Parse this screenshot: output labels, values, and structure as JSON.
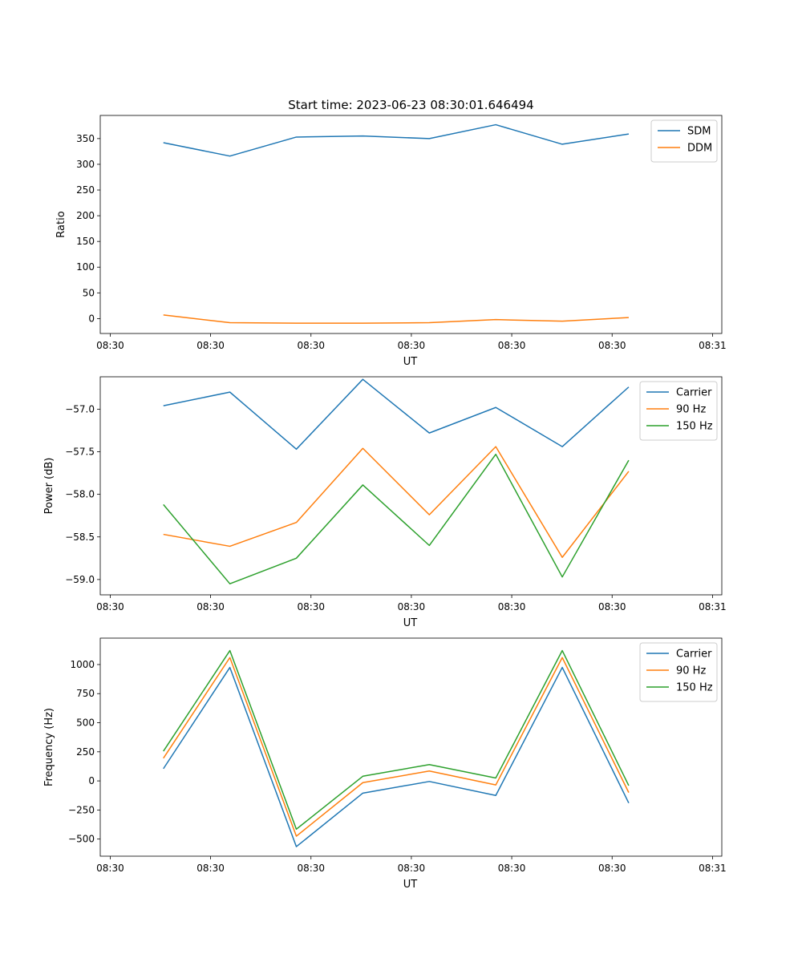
{
  "figure": {
    "title": "Start time: 2023-06-23 08:30:01.646494"
  },
  "chart_data": [
    {
      "type": "line",
      "title": "Start time: 2023-06-23 08:30:01.646494",
      "xlabel": "UT",
      "ylabel": "Ratio",
      "x": [
        1.0,
        2.0,
        3.0,
        4.0,
        5.0,
        6.0,
        7.0,
        8.0
      ],
      "xlim": [
        0.05,
        9.4
      ],
      "xticks": [
        0.2,
        1.71,
        3.22,
        4.73,
        6.24,
        7.75,
        9.26
      ],
      "xtick_labels": [
        "08:30",
        "08:30",
        "08:30",
        "08:30",
        "08:30",
        "08:30",
        "08:31"
      ],
      "ylim": [
        -29,
        395
      ],
      "yticks": [
        0,
        50,
        100,
        150,
        200,
        250,
        300,
        350
      ],
      "ytick_labels": [
        "0",
        "50",
        "100",
        "150",
        "200",
        "250",
        "300",
        "350"
      ],
      "legend": "top-right",
      "series": [
        {
          "name": "SDM",
          "color": "#1f77b4",
          "values": [
            342,
            316,
            353,
            355,
            350,
            377,
            339,
            359
          ]
        },
        {
          "name": "DDM",
          "color": "#ff7f0e",
          "values": [
            7,
            -8,
            -9,
            -9,
            -8,
            -2,
            -5,
            2
          ]
        }
      ]
    },
    {
      "type": "line",
      "xlabel": "UT",
      "ylabel": "Power (dB)",
      "x": [
        1.0,
        2.0,
        3.0,
        4.0,
        5.0,
        6.0,
        7.0,
        8.0
      ],
      "xlim": [
        0.05,
        9.4
      ],
      "xticks": [
        0.2,
        1.71,
        3.22,
        4.73,
        6.24,
        7.75,
        9.26
      ],
      "xtick_labels": [
        "08:30",
        "08:30",
        "08:30",
        "08:30",
        "08:30",
        "08:30",
        "08:31"
      ],
      "ylim": [
        -59.18,
        -56.62
      ],
      "yticks": [
        -59.0,
        -58.5,
        -58.0,
        -57.5,
        -57.0
      ],
      "ytick_labels": [
        "−59.0",
        "−58.5",
        "−58.0",
        "−57.5",
        "−57.0"
      ],
      "legend": "top-right",
      "series": [
        {
          "name": "Carrier",
          "color": "#1f77b4",
          "values": [
            -56.96,
            -56.8,
            -57.47,
            -56.65,
            -57.28,
            -56.98,
            -57.44,
            -56.74
          ]
        },
        {
          "name": "90 Hz",
          "color": "#ff7f0e",
          "values": [
            -58.47,
            -58.61,
            -58.33,
            -57.46,
            -58.24,
            -57.44,
            -58.74,
            -57.73
          ]
        },
        {
          "name": "150 Hz",
          "color": "#2ca02c",
          "values": [
            -58.12,
            -59.05,
            -58.75,
            -57.89,
            -58.6,
            -57.53,
            -58.97,
            -57.6
          ]
        }
      ]
    },
    {
      "type": "line",
      "xlabel": "UT",
      "ylabel": "Frequency (Hz)",
      "x": [
        1.0,
        2.0,
        3.0,
        4.0,
        5.0,
        6.0,
        7.0,
        8.0
      ],
      "xlim": [
        0.05,
        9.4
      ],
      "xticks": [
        0.2,
        1.71,
        3.22,
        4.73,
        6.24,
        7.75,
        9.26
      ],
      "xtick_labels": [
        "08:30",
        "08:30",
        "08:30",
        "08:30",
        "08:30",
        "08:30",
        "08:31"
      ],
      "ylim": [
        -647,
        1227
      ],
      "yticks": [
        -500,
        -250,
        0,
        250,
        500,
        750,
        1000
      ],
      "ytick_labels": [
        "−500",
        "−250",
        "0",
        "250",
        "500",
        "750",
        "1000"
      ],
      "legend": "top-right",
      "series": [
        {
          "name": "Carrier",
          "color": "#1f77b4",
          "values": [
            105,
            975,
            -565,
            -105,
            -5,
            -125,
            975,
            -190
          ]
        },
        {
          "name": "90 Hz",
          "color": "#ff7f0e",
          "values": [
            195,
            1060,
            -475,
            -15,
            85,
            -35,
            1060,
            -100
          ]
        },
        {
          "name": "150 Hz",
          "color": "#2ca02c",
          "values": [
            255,
            1120,
            -415,
            40,
            140,
            25,
            1120,
            -40
          ]
        }
      ]
    }
  ]
}
